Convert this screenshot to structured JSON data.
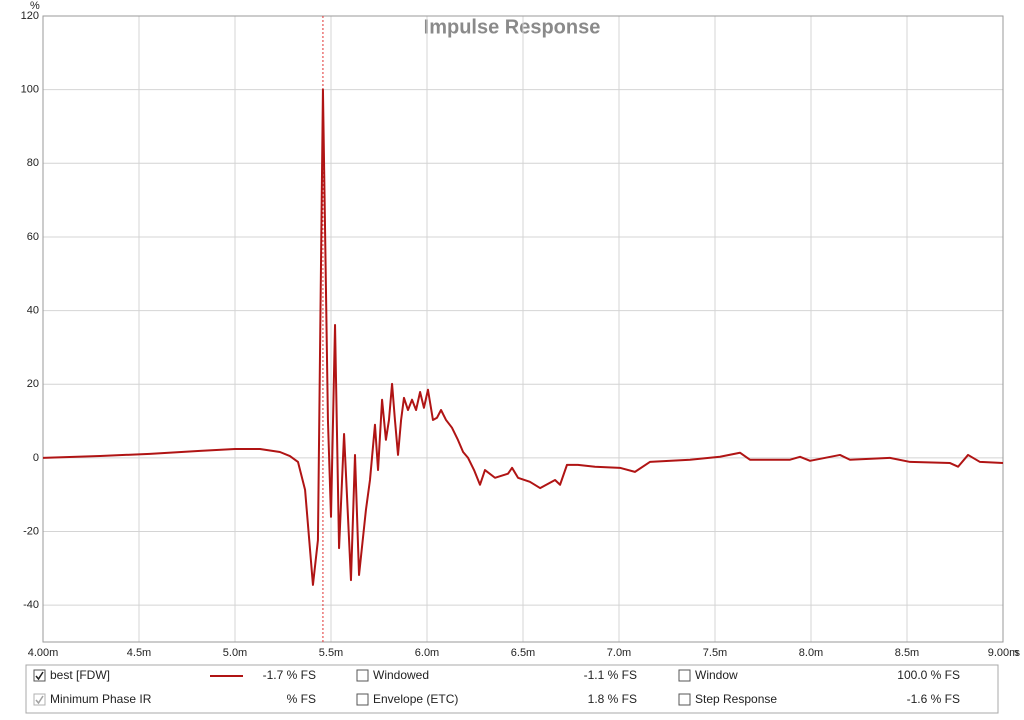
{
  "chart_data": {
    "type": "line",
    "title": "Impulse Response",
    "ylabel": "%",
    "xlabel": "s",
    "xlim": [
      4.0,
      9.0
    ],
    "ylim": [
      -50,
      120
    ],
    "xticks": [
      {
        "value": 4.0,
        "label": "4.00m"
      },
      {
        "value": 4.5,
        "label": "4.5m"
      },
      {
        "value": 5.0,
        "label": "5.0m"
      },
      {
        "value": 5.5,
        "label": "5.5m"
      },
      {
        "value": 6.0,
        "label": "6.0m"
      },
      {
        "value": 6.5,
        "label": "6.5m"
      },
      {
        "value": 7.0,
        "label": "7.0m"
      },
      {
        "value": 7.5,
        "label": "7.5m"
      },
      {
        "value": 8.0,
        "label": "8.0m"
      },
      {
        "value": 8.5,
        "label": "8.5m"
      },
      {
        "value": 9.0,
        "label": "9.00m"
      }
    ],
    "yticks": [
      -40,
      -20,
      0,
      20,
      40,
      60,
      80,
      100,
      120
    ],
    "grid": true,
    "cursor_x": 5.458,
    "cursor_color": "#e03030",
    "x": [
      4.0,
      4.297,
      4.557,
      4.818,
      5.0,
      5.13,
      5.234,
      5.286,
      5.328,
      5.365,
      5.406,
      5.432,
      5.458,
      5.484,
      5.5,
      5.521,
      5.542,
      5.568,
      5.604,
      5.625,
      5.646,
      5.682,
      5.703,
      5.729,
      5.745,
      5.766,
      5.786,
      5.802,
      5.818,
      5.833,
      5.849,
      5.865,
      5.88,
      5.901,
      5.922,
      5.943,
      5.964,
      5.984,
      6.005,
      6.031,
      6.052,
      6.073,
      6.099,
      6.13,
      6.161,
      6.188,
      6.214,
      6.245,
      6.276,
      6.302,
      6.354,
      6.422,
      6.443,
      6.474,
      6.536,
      6.589,
      6.667,
      6.693,
      6.729,
      6.786,
      6.875,
      7.005,
      7.083,
      7.161,
      7.37,
      7.526,
      7.63,
      7.682,
      7.891,
      7.943,
      7.995,
      8.151,
      8.203,
      8.411,
      8.516,
      8.724,
      8.766,
      8.818,
      8.88,
      9.0
    ],
    "series": [
      {
        "name": "best [FDW]",
        "color": "#b01414",
        "values": [
          0,
          0.5,
          1.1,
          1.9,
          2.4,
          2.4,
          1.6,
          0.5,
          -1.1,
          -8.7,
          -34.5,
          -22.3,
          100,
          10.3,
          -16,
          36.1,
          -24.5,
          6.5,
          -33.2,
          0.8,
          -31.8,
          -14.1,
          -6,
          9,
          -3.3,
          15.8,
          4.9,
          10.3,
          20.1,
          10.3,
          0.8,
          10.3,
          16.3,
          13,
          15.8,
          13,
          17.9,
          13.6,
          18.5,
          10.3,
          10.9,
          13,
          10.3,
          8.2,
          4.9,
          1.6,
          0,
          -3.3,
          -7.3,
          -3.3,
          -5.4,
          -4.3,
          -2.7,
          -5.4,
          -6.5,
          -8.2,
          -6,
          -7.3,
          -1.9,
          -1.9,
          -2.4,
          -2.7,
          -3.8,
          -1.1,
          -0.5,
          0.3,
          1.4,
          -0.5,
          -0.5,
          0.3,
          -0.8,
          0.8,
          -0.5,
          0,
          -1.1,
          -1.4,
          -2.4,
          0.8,
          -1.1,
          -1.4
        ]
      }
    ]
  },
  "legend_panel": {
    "entries": [
      {
        "value": "-1.7 % FS",
        "checked": true,
        "color": "#b01414"
      },
      {
        "label": "Minimum Phase IR",
        "value": "% FS",
        "checked": true,
        "disabled": true,
        "color": "#a0a0a0"
      },
      {
        "label": "Windowed",
        "value": "-1.1 % FS",
        "checked": false,
        "color": "#c01818"
      },
      {
        "label": "Envelope (ETC)",
        "value": "1.8 % FS",
        "checked": false,
        "color": "#303030"
      },
      {
        "label": "Window",
        "value": "100.0 % FS",
        "checked": false,
        "color": "#1a1aa0"
      },
      {
        "label": "Step Response",
        "value": "-1.6 % FS",
        "checked": false,
        "color": "#303030"
      }
    ]
  }
}
